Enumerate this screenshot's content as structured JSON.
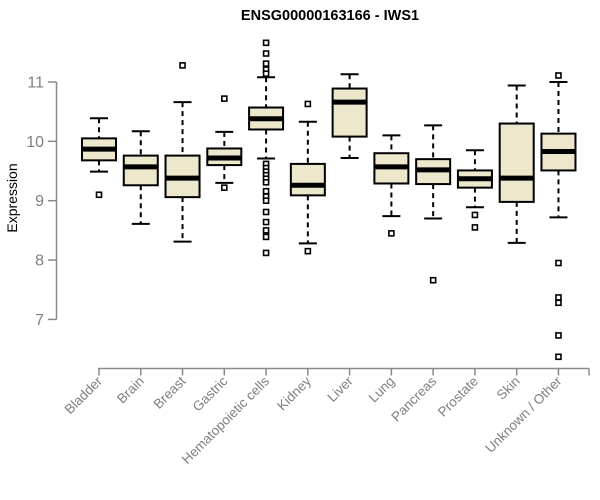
{
  "chart_data": {
    "type": "boxplot",
    "title": "ENSG00000163166 - IWS1",
    "ylabel": "Expression",
    "xlabel": "",
    "yticks": [
      7,
      8,
      9,
      10,
      11
    ],
    "ylim": [
      6.2,
      11.8
    ],
    "grid": false,
    "legend": null,
    "categories": [
      "Bladder",
      "Brain",
      "Breast",
      "Gastric",
      "Hematopoietic cells",
      "Kidney",
      "Liver",
      "Lung",
      "Pancreas",
      "Prostate",
      "Skin",
      "Unknown / Other"
    ],
    "series": [
      {
        "name": "Bladder",
        "low": 9.49,
        "q1": 9.68,
        "median": 9.87,
        "q3": 10.05,
        "high": 10.39,
        "outliers": [
          9.1
        ]
      },
      {
        "name": "Brain",
        "low": 8.61,
        "q1": 9.26,
        "median": 9.57,
        "q3": 9.76,
        "high": 10.17,
        "outliers": []
      },
      {
        "name": "Breast",
        "low": 8.31,
        "q1": 9.06,
        "median": 9.38,
        "q3": 9.76,
        "high": 10.66,
        "outliers": [
          11.28
        ]
      },
      {
        "name": "Gastric",
        "low": 9.3,
        "q1": 9.6,
        "median": 9.72,
        "q3": 9.88,
        "high": 10.16,
        "outliers": [
          10.72,
          9.22
        ]
      },
      {
        "name": "Hematopoietic cells",
        "low": 9.71,
        "q1": 10.2,
        "median": 10.38,
        "q3": 10.57,
        "high": 11.08,
        "outliers": [
          11.66,
          11.48,
          11.31,
          11.21,
          11.14,
          9.62,
          9.55,
          9.49,
          9.43,
          9.37,
          9.31,
          9.16,
          9.07,
          9.0,
          8.81,
          8.64,
          8.5,
          8.39,
          8.12
        ]
      },
      {
        "name": "Kidney",
        "low": 8.28,
        "q1": 9.09,
        "median": 9.26,
        "q3": 9.62,
        "high": 10.33,
        "outliers": [
          10.63,
          8.15
        ]
      },
      {
        "name": "Liver",
        "low": 9.72,
        "q1": 10.08,
        "median": 10.66,
        "q3": 10.89,
        "high": 11.13,
        "outliers": []
      },
      {
        "name": "Lung",
        "low": 8.74,
        "q1": 9.29,
        "median": 9.57,
        "q3": 9.8,
        "high": 10.1,
        "outliers": [
          8.45
        ]
      },
      {
        "name": "Pancreas",
        "low": 8.7,
        "q1": 9.28,
        "median": 9.52,
        "q3": 9.7,
        "high": 10.27,
        "outliers": [
          7.66
        ]
      },
      {
        "name": "Prostate",
        "low": 8.89,
        "q1": 9.22,
        "median": 9.37,
        "q3": 9.51,
        "high": 9.85,
        "outliers": [
          8.76,
          8.55
        ]
      },
      {
        "name": "Skin",
        "low": 8.29,
        "q1": 8.98,
        "median": 9.38,
        "q3": 10.3,
        "high": 10.94,
        "outliers": []
      },
      {
        "name": "Unknown / Other",
        "low": 8.72,
        "q1": 9.51,
        "median": 9.83,
        "q3": 10.13,
        "high": 11.0,
        "outliers": [
          11.11,
          7.95,
          7.37,
          7.28,
          6.73,
          6.37
        ]
      }
    ]
  },
  "colors": {
    "background": "#ffffff",
    "box_fill": "#ede7cb",
    "box_stroke": "#000000",
    "median": "#000000",
    "whisker": "#000000",
    "outlier_stroke": "#000000",
    "outlier_fill": "#ffffff",
    "axis": "#8a8a8a",
    "tick_label": "#7f7f7f",
    "title": "#000000"
  }
}
